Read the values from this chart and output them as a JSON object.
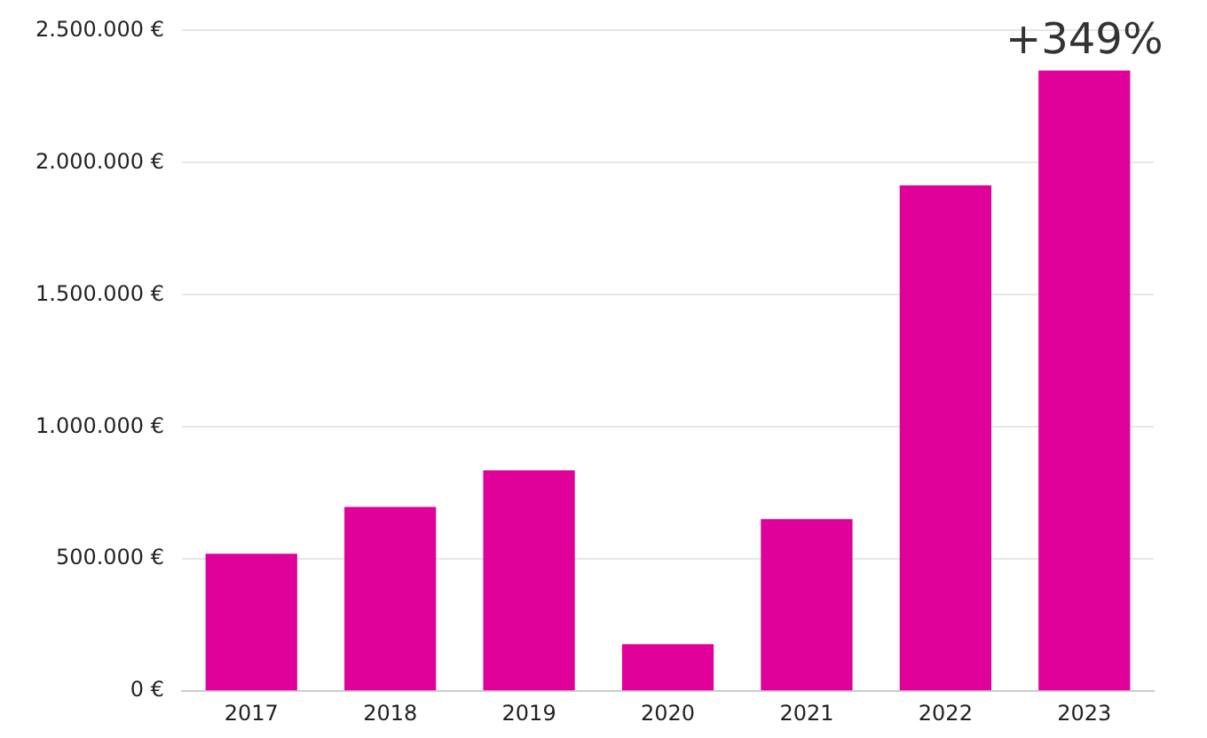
{
  "chart_data": {
    "type": "bar",
    "categories": [
      "2017",
      "2018",
      "2019",
      "2020",
      "2021",
      "2022",
      "2023"
    ],
    "values": [
      520000,
      697000,
      836000,
      178000,
      651000,
      1914000,
      2349000
    ],
    "color": "#e0009a",
    "ylim": [
      0,
      2500000
    ],
    "yticks": [
      {
        "value": 0,
        "label": "0 €"
      },
      {
        "value": 500000,
        "label": "500.000 €"
      },
      {
        "value": 1000000,
        "label": "1.000.000 €"
      },
      {
        "value": 1500000,
        "label": "1.500.000 €"
      },
      {
        "value": 2000000,
        "label": "2.000.000 €"
      },
      {
        "value": 2500000,
        "label": "2.500.000 €"
      }
    ],
    "grid": "y",
    "annotations": [
      {
        "text": "+349%",
        "x": "2023",
        "y": 2349000
      }
    ]
  }
}
